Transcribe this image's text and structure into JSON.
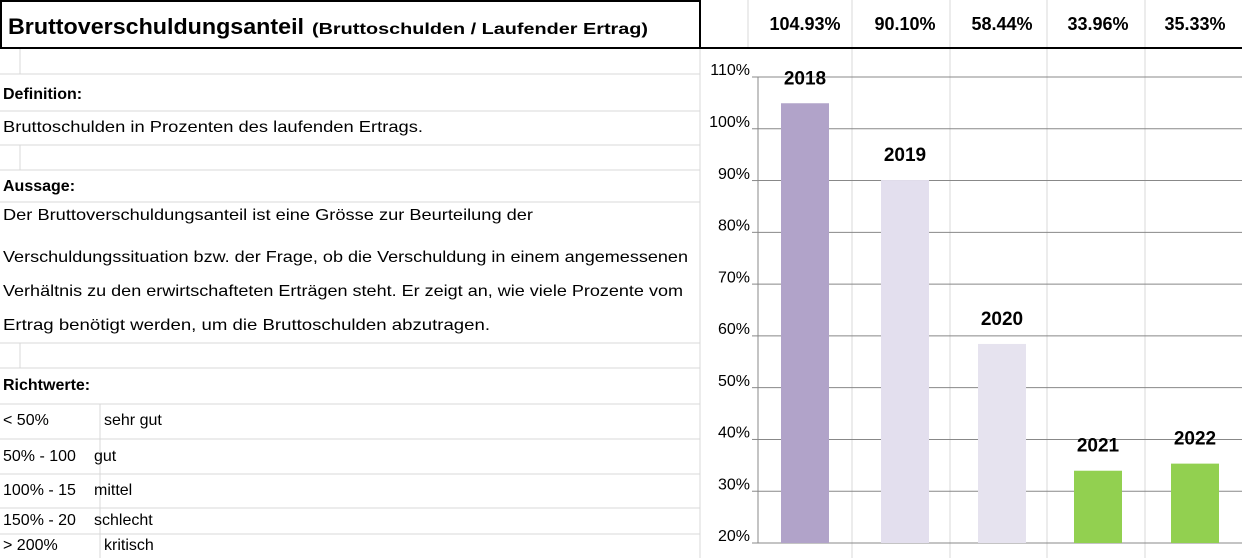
{
  "title": "Bruttoverschuldungsanteil",
  "subtitle": "(Bruttoschulden / Laufender Ertrag)",
  "definition": {
    "label": "Definition:",
    "text": "Bruttoschulden in Prozenten des laufenden Ertrags."
  },
  "aussage": {
    "label": "Aussage:",
    "lines": [
      "Der Bruttoverschuldungsanteil ist eine Grösse zur Beurteilung der",
      "Verschuldungssituation bzw. der Frage, ob die Verschuldung in einem angemessenen",
      "Verhältnis zu den erwirtschafteten Erträgen steht. Er zeigt an, wie viele Prozente vom",
      "Ertrag benötigt werden, um die Bruttoschulden abzutragen."
    ]
  },
  "richtwerte": {
    "label": "Richtwerte:",
    "rows": [
      [
        "< 50%",
        "sehr gut"
      ],
      [
        "50% - 100",
        "gut"
      ],
      [
        "100% - 15",
        "mittel"
      ],
      [
        "150% - 20",
        "schlecht"
      ],
      [
        "> 200%",
        "kritisch"
      ]
    ]
  },
  "chart_data": {
    "type": "bar",
    "categories": [
      "2018",
      "2019",
      "2020",
      "2021",
      "2022"
    ],
    "values": [
      104.93,
      90.1,
      58.44,
      33.96,
      35.33
    ],
    "value_labels": [
      "104.93%",
      "90.10%",
      "58.44%",
      "33.96%",
      "35.33%"
    ],
    "colors": [
      "#b1a3c9",
      "#e3dfee",
      "#e6e3ef",
      "#92d050",
      "#92d050"
    ],
    "ylim": [
      20,
      110
    ],
    "yticks": [
      {
        "value": 20,
        "label": "20%"
      },
      {
        "value": 30,
        "label": "30%"
      },
      {
        "value": 40,
        "label": "40%"
      },
      {
        "value": 50,
        "label": "50%"
      },
      {
        "value": 60,
        "label": "60%"
      },
      {
        "value": 70,
        "label": "70%"
      },
      {
        "value": 80,
        "label": "80%"
      },
      {
        "value": 90,
        "label": "90%"
      },
      {
        "value": 100,
        "label": "100%"
      },
      {
        "value": 110,
        "label": "110%"
      }
    ],
    "grid": true
  }
}
